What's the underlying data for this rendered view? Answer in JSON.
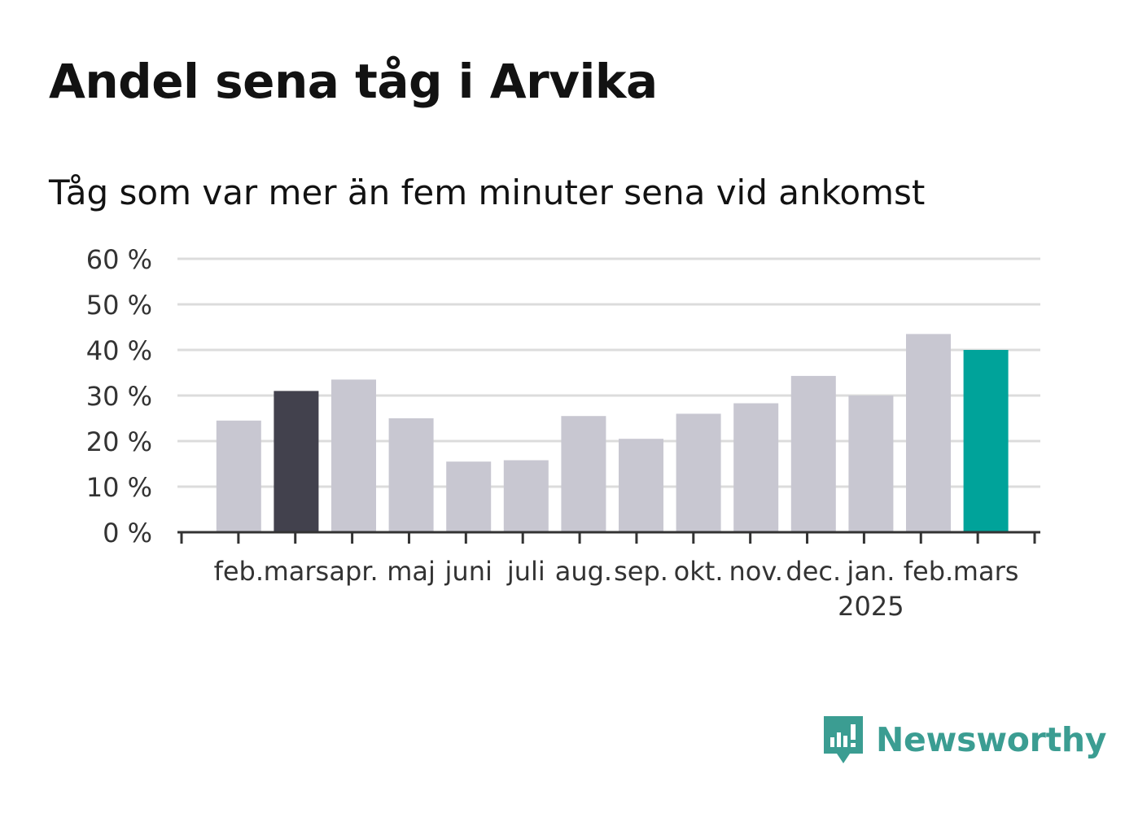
{
  "chart_data": {
    "type": "bar",
    "title": "Andel sena tåg i Arvika",
    "subtitle": "Tåg som var mer än fem minuter sena vid ankomst",
    "xlabel": "",
    "ylabel": "",
    "categories": [
      "feb.",
      "mars",
      "apr.",
      "maj",
      "juni",
      "juli",
      "aug.",
      "sep.",
      "okt.",
      "nov.",
      "dec.",
      "jan.",
      "feb.",
      "mars"
    ],
    "year_labels": [
      {
        "category_index": 11,
        "label": "2025"
      }
    ],
    "values": [
      24.5,
      31,
      33.5,
      25,
      15.5,
      15.8,
      25.5,
      20.5,
      26,
      28.3,
      34.3,
      30,
      43.5,
      40
    ],
    "bar_colors": [
      "#c8c7d1",
      "#42414d",
      "#c8c7d1",
      "#c8c7d1",
      "#c8c7d1",
      "#c8c7d1",
      "#c8c7d1",
      "#c8c7d1",
      "#c8c7d1",
      "#c8c7d1",
      "#c8c7d1",
      "#c8c7d1",
      "#c8c7d1",
      "#00a39a"
    ],
    "yticks": [
      "0 %",
      "10 %",
      "20 %",
      "30 %",
      "40 %",
      "50 %",
      "60 %"
    ],
    "ylim": [
      0,
      60
    ],
    "grid": true,
    "legend": "none"
  },
  "brand": {
    "name": "Newsworthy",
    "icon": "newsworthy-logo-icon",
    "color": "#3b9d92"
  }
}
